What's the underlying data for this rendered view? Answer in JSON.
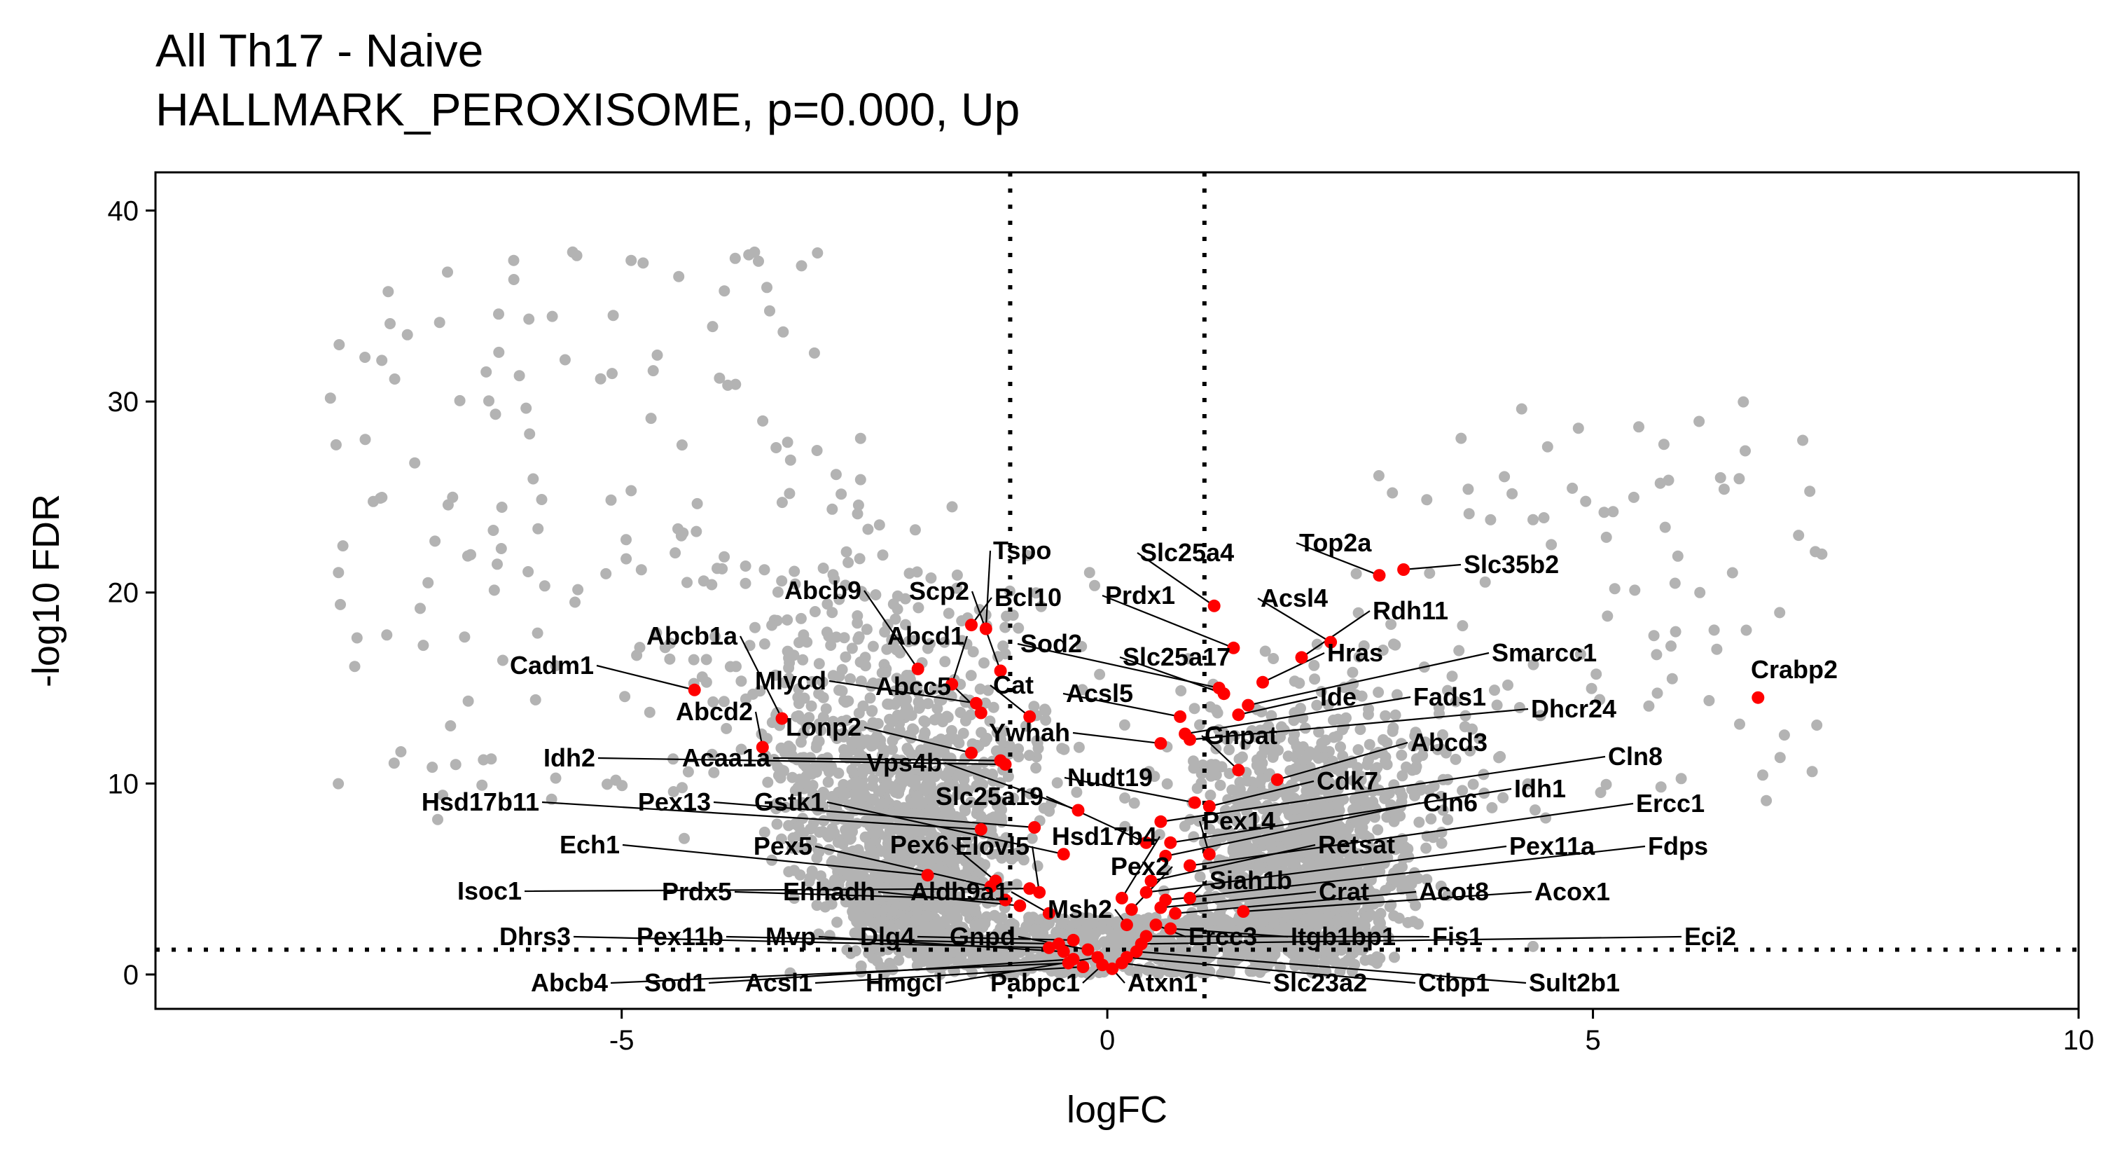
{
  "chart_data": {
    "type": "scatter",
    "title": "All Th17 - Naive",
    "subtitle": "HALLMARK_PEROXISOME, p=0.000, Up",
    "xlabel": "logFC",
    "ylabel": "-log10 FDR",
    "xlim": [
      -9.8,
      10
    ],
    "ylim": [
      -1.8,
      42
    ],
    "xticks": [
      -5,
      0,
      5,
      10
    ],
    "yticks": [
      0,
      10,
      20,
      30,
      40
    ],
    "grid": false,
    "vlines": [
      -1,
      1
    ],
    "hline": 1.3,
    "background_color": "#b3b3b3",
    "highlight_color": "#ff0000",
    "labeled_genes": [
      {
        "label": "Crabp2",
        "x": 6.7,
        "y": 14.5
      },
      {
        "label": "Top2a",
        "x": 2.8,
        "y": 20.9
      },
      {
        "label": "Slc35b2",
        "x": 3.05,
        "y": 21.2
      },
      {
        "label": "Slc25a4",
        "x": 1.1,
        "y": 19.3
      },
      {
        "label": "Prdx1",
        "x": 1.3,
        "y": 17.1
      },
      {
        "label": "Acsl4",
        "x": 2.3,
        "y": 17.4
      },
      {
        "label": "Rdh11",
        "x": 2.0,
        "y": 16.6
      },
      {
        "label": "Sod2",
        "x": 1.15,
        "y": 15.0
      },
      {
        "label": "Slc25a17",
        "x": 1.2,
        "y": 14.7
      },
      {
        "label": "Hras",
        "x": 1.6,
        "y": 15.3
      },
      {
        "label": "Smarcc1",
        "x": 1.45,
        "y": 14.1
      },
      {
        "label": "Acsl5",
        "x": 0.75,
        "y": 13.5
      },
      {
        "label": "Ide",
        "x": 1.35,
        "y": 13.6
      },
      {
        "label": "Fads1",
        "x": 0.8,
        "y": 12.6
      },
      {
        "label": "Dhcr24",
        "x": 0.85,
        "y": 12.3
      },
      {
        "label": "Gnpat",
        "x": 1.35,
        "y": 10.7
      },
      {
        "label": "Abcd3",
        "x": 1.75,
        "y": 10.2
      },
      {
        "label": "Nudt19",
        "x": 0.9,
        "y": 9.0
      },
      {
        "label": "Cdk7",
        "x": 1.05,
        "y": 8.8
      },
      {
        "label": "Cln8",
        "x": 0.55,
        "y": 8.0
      },
      {
        "label": "Idh1",
        "x": 0.65,
        "y": 6.9
      },
      {
        "label": "Pex14",
        "x": 1.05,
        "y": 6.3
      },
      {
        "label": "Cln6",
        "x": 0.6,
        "y": 6.2
      },
      {
        "label": "Ercc1",
        "x": 0.85,
        "y": 5.7
      },
      {
        "label": "Retsat",
        "x": 0.45,
        "y": 4.9
      },
      {
        "label": "Pex11a",
        "x": 0.4,
        "y": 4.3
      },
      {
        "label": "Fdps",
        "x": 0.6,
        "y": 3.9
      },
      {
        "label": "Siah1b",
        "x": 0.85,
        "y": 4.0
      },
      {
        "label": "Crat",
        "x": 0.55,
        "y": 3.5
      },
      {
        "label": "Acot8",
        "x": 0.7,
        "y": 3.2
      },
      {
        "label": "Acox1",
        "x": 1.4,
        "y": 3.3
      },
      {
        "label": "Ercc3",
        "x": 0.5,
        "y": 2.6
      },
      {
        "label": "Itgb1bp1",
        "x": 0.65,
        "y": 2.4
      },
      {
        "label": "Fis1",
        "x": 0.4,
        "y": 2.0
      },
      {
        "label": "Eci2",
        "x": 0.35,
        "y": 1.6
      },
      {
        "label": "Atxn1",
        "x": 0.05,
        "y": 0.3
      },
      {
        "label": "Slc23a2",
        "x": 0.15,
        "y": 0.6
      },
      {
        "label": "Ctbp1",
        "x": 0.2,
        "y": 0.9
      },
      {
        "label": "Sult2b1",
        "x": 0.3,
        "y": 1.2
      },
      {
        "label": "Tspo",
        "x": -1.25,
        "y": 18.1
      },
      {
        "label": "Bcl10",
        "x": -1.4,
        "y": 18.3
      },
      {
        "label": "Scp2",
        "x": -1.1,
        "y": 15.9
      },
      {
        "label": "Abcb9",
        "x": -1.95,
        "y": 16.0
      },
      {
        "label": "Abcd1",
        "x": -1.6,
        "y": 15.2
      },
      {
        "label": "Cadm1",
        "x": -4.25,
        "y": 14.9
      },
      {
        "label": "Abcb1a",
        "x": -3.35,
        "y": 13.4
      },
      {
        "label": "Mlycd",
        "x": -1.35,
        "y": 14.2
      },
      {
        "label": "Abcc5",
        "x": -1.3,
        "y": 13.7
      },
      {
        "label": "Cat",
        "x": -0.8,
        "y": 13.5
      },
      {
        "label": "Abcd2",
        "x": -3.55,
        "y": 11.9
      },
      {
        "label": "Lonp2",
        "x": -1.4,
        "y": 11.6
      },
      {
        "label": "Ywhah",
        "x": 0.55,
        "y": 12.1
      },
      {
        "label": "Idh2",
        "x": -1.05,
        "y": 11.0
      },
      {
        "label": "Acaa1a",
        "x": -1.1,
        "y": 11.2
      },
      {
        "label": "Vps4b",
        "x": -0.3,
        "y": 8.6
      },
      {
        "label": "Hsd17b11",
        "x": -1.3,
        "y": 7.6
      },
      {
        "label": "Pex13",
        "x": -0.75,
        "y": 7.7
      },
      {
        "label": "Gstk1",
        "x": -0.45,
        "y": 6.3
      },
      {
        "label": "Slc25a19",
        "x": 0.4,
        "y": 6.9
      },
      {
        "label": "Ech1",
        "x": -1.85,
        "y": 5.2
      },
      {
        "label": "Pex5",
        "x": -1.2,
        "y": 4.6
      },
      {
        "label": "Pex6",
        "x": -1.15,
        "y": 4.9
      },
      {
        "label": "Elovl5",
        "x": -0.7,
        "y": 4.3
      },
      {
        "label": "Hsd17b4",
        "x": 0.15,
        "y": 4.0
      },
      {
        "label": "Pex2",
        "x": 0.25,
        "y": 3.4
      },
      {
        "label": "Isoc1",
        "x": -0.8,
        "y": 4.5
      },
      {
        "label": "Prdx5",
        "x": -1.05,
        "y": 3.9
      },
      {
        "label": "Ehhadh",
        "x": -0.9,
        "y": 3.6
      },
      {
        "label": "Aldh9a1",
        "x": -0.6,
        "y": 3.2
      },
      {
        "label": "Msh2",
        "x": 0.2,
        "y": 2.6
      },
      {
        "label": "Dhrs3",
        "x": -0.6,
        "y": 1.4
      },
      {
        "label": "Pex11b",
        "x": -0.5,
        "y": 1.6
      },
      {
        "label": "Mvp",
        "x": -0.45,
        "y": 1.2
      },
      {
        "label": "Dlg4",
        "x": -0.35,
        "y": 1.8
      },
      {
        "label": "Gnpd",
        "x": -0.2,
        "y": 1.3
      },
      {
        "label": "Abcb4",
        "x": -0.4,
        "y": 0.6
      },
      {
        "label": "Sod1",
        "x": -0.35,
        "y": 0.8
      },
      {
        "label": "Acsl1",
        "x": -0.25,
        "y": 0.4
      },
      {
        "label": "Hmgcl",
        "x": -0.1,
        "y": 0.9
      },
      {
        "label": "Pabpc1",
        "x": -0.05,
        "y": 0.5
      }
    ]
  }
}
